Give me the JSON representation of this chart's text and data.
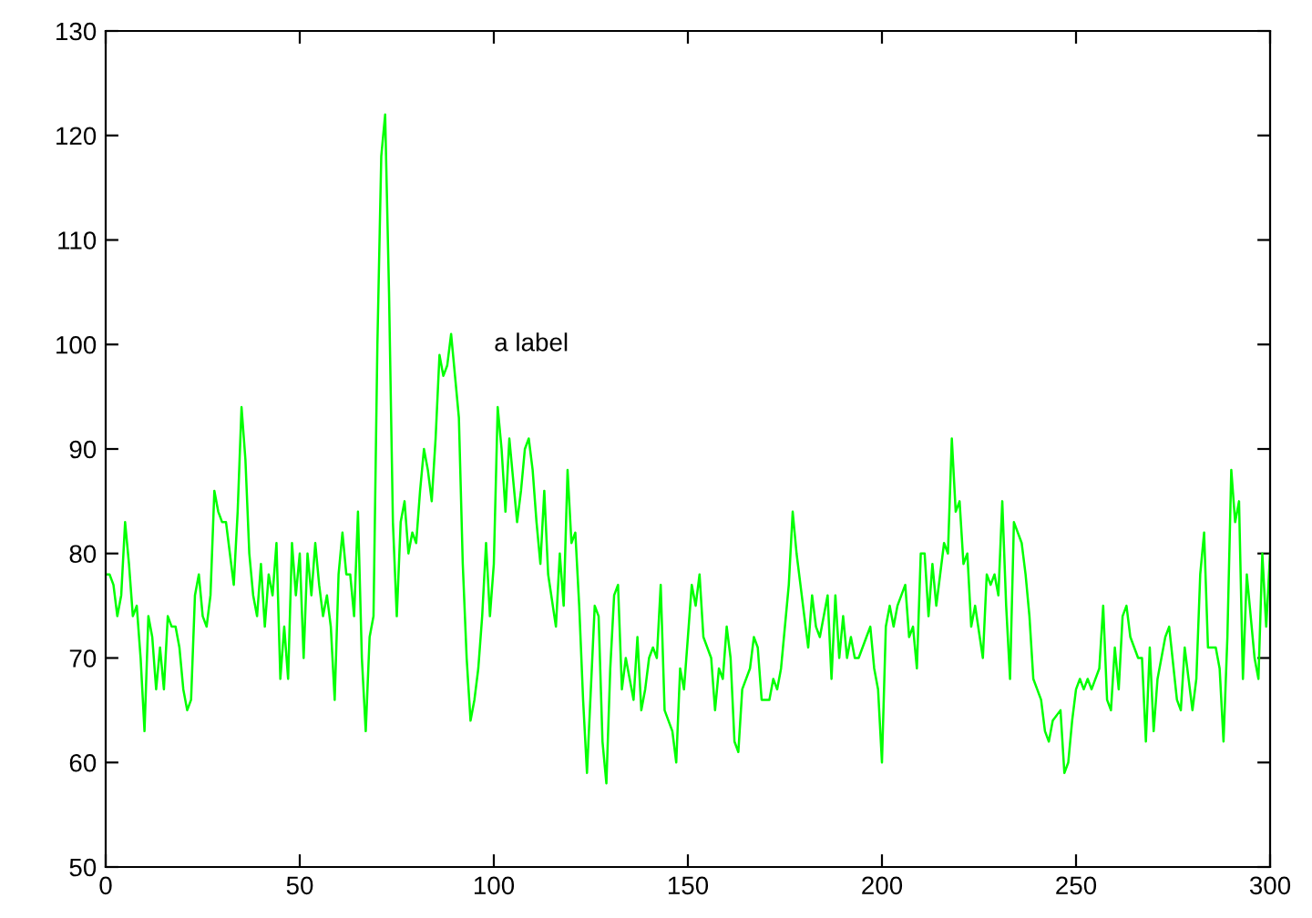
{
  "chart_data": {
    "type": "line",
    "x": [
      0,
      1,
      2,
      3,
      4,
      5,
      6,
      7,
      8,
      9,
      10,
      11,
      12,
      13,
      14,
      15,
      16,
      17,
      18,
      19,
      20,
      21,
      22,
      23,
      24,
      25,
      26,
      27,
      28,
      29,
      30,
      31,
      32,
      33,
      34,
      35,
      36,
      37,
      38,
      39,
      40,
      41,
      42,
      43,
      44,
      45,
      46,
      47,
      48,
      49,
      50,
      51,
      52,
      53,
      54,
      55,
      56,
      57,
      58,
      59,
      60,
      61,
      62,
      63,
      64,
      65,
      66,
      67,
      68,
      69,
      70,
      71,
      72,
      73,
      74,
      75,
      76,
      77,
      78,
      79,
      80,
      81,
      82,
      83,
      84,
      85,
      86,
      87,
      88,
      89,
      90,
      91,
      92,
      93,
      94,
      95,
      96,
      97,
      98,
      99,
      100,
      101,
      102,
      103,
      104,
      106,
      107,
      108,
      109,
      110,
      111,
      112,
      113,
      114,
      116,
      117,
      118,
      119,
      120,
      121,
      122,
      123,
      124,
      126,
      127,
      128,
      129,
      130,
      131,
      132,
      133,
      134,
      136,
      137,
      138,
      139,
      140,
      141,
      142,
      143,
      144,
      146,
      147,
      148,
      149,
      150,
      151,
      152,
      153,
      154,
      156,
      157,
      158,
      159,
      160,
      161,
      162,
      163,
      164,
      166,
      167,
      168,
      169,
      170,
      171,
      172,
      173,
      174,
      176,
      177,
      178,
      179,
      180,
      181,
      182,
      183,
      184,
      186,
      187,
      188,
      189,
      190,
      191,
      192,
      193,
      194,
      196,
      197,
      198,
      199,
      200,
      201,
      202,
      203,
      204,
      206,
      207,
      208,
      209,
      210,
      211,
      212,
      213,
      214,
      216,
      217,
      218,
      219,
      220,
      221,
      222,
      223,
      224,
      226,
      227,
      228,
      229,
      230,
      231,
      232,
      233,
      234,
      236,
      237,
      238,
      239,
      240,
      241,
      242,
      243,
      244,
      246,
      247,
      248,
      249,
      250,
      251,
      252,
      253,
      254,
      256,
      257,
      258,
      259,
      260,
      261,
      262,
      263,
      264,
      266,
      267,
      268,
      269,
      270,
      271,
      272,
      273,
      274,
      276,
      277,
      278,
      279,
      280,
      281,
      282,
      283,
      284,
      286,
      287,
      288,
      289,
      290,
      291,
      292,
      293,
      294,
      296,
      297,
      298,
      299,
      300
    ],
    "series": [
      {
        "color": "#00ff00",
        "values": [
          78,
          78,
          77,
          74,
          76,
          83,
          79,
          74,
          75,
          70,
          63,
          74,
          72,
          67,
          71,
          67,
          74,
          73,
          73,
          71,
          67,
          65,
          66,
          76,
          78,
          74,
          73,
          76,
          86,
          84,
          83,
          83,
          80,
          77,
          84,
          94,
          89,
          80,
          76,
          74,
          79,
          73,
          78,
          76,
          81,
          68,
          73,
          68,
          81,
          76,
          80,
          70,
          80,
          76,
          81,
          77,
          74,
          76,
          73,
          66,
          78,
          82,
          78,
          78,
          74,
          84,
          70,
          63,
          72,
          74,
          100,
          118,
          122,
          105,
          83,
          74,
          83,
          85,
          80,
          82,
          81,
          86,
          90,
          88,
          85,
          91,
          99,
          97,
          98,
          101,
          97,
          93,
          79,
          70,
          64,
          66,
          69,
          74,
          81,
          74,
          79,
          94,
          90,
          84,
          91,
          83,
          86,
          90,
          91,
          88,
          83,
          79,
          86,
          78,
          73,
          80,
          75,
          88,
          81,
          82,
          75,
          66,
          59,
          75,
          74,
          62,
          58,
          69,
          76,
          77,
          67,
          70,
          66,
          72,
          65,
          67,
          70,
          71,
          70,
          77,
          65,
          63,
          60,
          69,
          67,
          72,
          77,
          75,
          78,
          72,
          70,
          65,
          69,
          68,
          73,
          70,
          62,
          61,
          67,
          69,
          72,
          71,
          66,
          66,
          66,
          68,
          67,
          69,
          77,
          84,
          80,
          77,
          74,
          71,
          76,
          73,
          72,
          76,
          68,
          76,
          70,
          74,
          70,
          72,
          70,
          70,
          72,
          73,
          69,
          67,
          60,
          73,
          75,
          73,
          75,
          77,
          72,
          73,
          69,
          80,
          80,
          74,
          79,
          75,
          81,
          80,
          91,
          84,
          85,
          79,
          80,
          73,
          75,
          70,
          78,
          77,
          78,
          76,
          85,
          75,
          68,
          83,
          81,
          78,
          74,
          68,
          67,
          66,
          63,
          62,
          64,
          65,
          59,
          60,
          64,
          67,
          68,
          67,
          68,
          67,
          69,
          75,
          66,
          65,
          71,
          67,
          74,
          75,
          72,
          70,
          70,
          62,
          71,
          63,
          68,
          70,
          72,
          73,
          66,
          65,
          71,
          68,
          65,
          68,
          78,
          82,
          71,
          71,
          69,
          62,
          72,
          88,
          83,
          85,
          68,
          78,
          70,
          68,
          80,
          73,
          80
        ]
      }
    ],
    "xlim": [
      0,
      300
    ],
    "xticks": [
      0,
      50,
      100,
      150,
      200,
      250,
      300
    ],
    "ylim": [
      50,
      130
    ],
    "yticks": [
      50,
      60,
      70,
      80,
      90,
      100,
      110,
      120,
      130
    ],
    "grid": false,
    "legend": false,
    "marker": "none",
    "line_style": "solid",
    "annotations": [
      "a label"
    ]
  }
}
